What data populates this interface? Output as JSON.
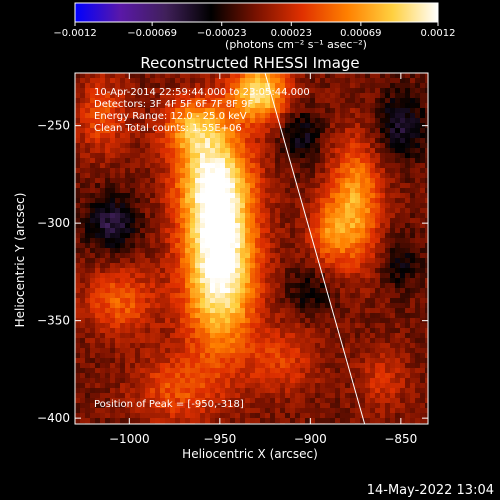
{
  "chart_data": {
    "type": "heatmap",
    "title": "Reconstructed RHESSI Image",
    "xlabel": "Heliocentric X (arcsec)",
    "ylabel": "Heliocentric Y (arcsec)",
    "xlim": [
      -1030,
      -835
    ],
    "ylim": [
      -403,
      -223
    ],
    "xticks": [
      -1000,
      -950,
      -900,
      -850
    ],
    "yticks": [
      -250,
      -300,
      -350,
      -400
    ],
    "xtick_labels": [
      "−1000",
      "−950",
      "−900",
      "−850"
    ],
    "ytick_labels": [
      "−250",
      "−300",
      "−350",
      "−400"
    ],
    "colorbar": {
      "range": [
        -0.0012,
        0.0012
      ],
      "ticks": [
        -0.0012,
        -0.00069,
        -0.00023,
        0.00023,
        0.00069,
        0.0012
      ],
      "tick_labels": [
        "−0.0012",
        "−0.00069",
        "−0.00023",
        "0.00023",
        "0.00069",
        "0.0012"
      ],
      "unit_label": "(photons cm⁻² s⁻¹ asec⁻²)",
      "colors": [
        "#0000ff",
        "#5a18a8",
        "#40205a",
        "#000000",
        "#7a1200",
        "#e03000",
        "#ff8000",
        "#ffd040",
        "#ffffff"
      ]
    },
    "sources": [
      {
        "x": -950,
        "y": -318,
        "sx": 14,
        "sy": 32,
        "amp": 1.0
      },
      {
        "x": -955,
        "y": -275,
        "sx": 14,
        "sy": 18,
        "amp": 0.55
      },
      {
        "x": -965,
        "y": -250,
        "sx": 12,
        "sy": 10,
        "amp": 0.45
      },
      {
        "x": -928,
        "y": -233,
        "sx": 11,
        "sy": 10,
        "amp": 0.75
      },
      {
        "x": -875,
        "y": -290,
        "sx": 10,
        "sy": 22,
        "amp": 0.55
      },
      {
        "x": -890,
        "y": -305,
        "sx": 8,
        "sy": 12,
        "amp": 0.35
      },
      {
        "x": -1005,
        "y": -340,
        "sx": 14,
        "sy": 12,
        "amp": 0.35
      },
      {
        "x": -975,
        "y": -385,
        "sx": 16,
        "sy": 12,
        "amp": 0.3
      },
      {
        "x": -915,
        "y": -370,
        "sx": 14,
        "sy": 12,
        "amp": 0.25
      },
      {
        "x": -1015,
        "y": -245,
        "sx": 10,
        "sy": 14,
        "amp": 0.3
      },
      {
        "x": -860,
        "y": -380,
        "sx": 10,
        "sy": 12,
        "amp": 0.2
      },
      {
        "x": -1010,
        "y": -300,
        "sx": 10,
        "sy": 10,
        "amp": -0.35
      },
      {
        "x": -850,
        "y": -250,
        "sx": 10,
        "sy": 12,
        "amp": -0.3
      },
      {
        "x": -905,
        "y": -255,
        "sx": 8,
        "sy": 10,
        "amp": -0.25
      },
      {
        "x": -900,
        "y": -335,
        "sx": 10,
        "sy": 8,
        "amp": -0.2
      },
      {
        "x": -850,
        "y": -320,
        "sx": 8,
        "sy": 10,
        "amp": -0.2
      }
    ],
    "limb_line": [
      [
        -925,
        -223
      ],
      [
        -870,
        -403
      ]
    ],
    "annotations": {
      "time_range": "10-Apr-2014 22:59:44.000 to 23:05:44.000",
      "detectors": "Detectors: 3F 4F 5F 6F 7F 8F 9F",
      "energy": "Energy Range: 12.0 - 25.0 keV",
      "clean": "Clean    Total counts: 1.55E+06",
      "peak": "Position of Peak = [-950,-318]"
    }
  },
  "footer_timestamp": "14-May-2022 13:04"
}
